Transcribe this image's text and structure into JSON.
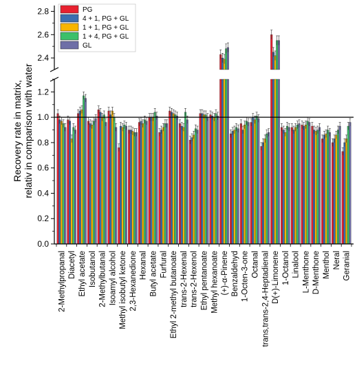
{
  "chart_data": {
    "type": "bar",
    "ylabel": [
      "Recovery rate in matrix,",
      "relativ in comparison with water"
    ],
    "reference_line": 1.0,
    "broken_y_axis": true,
    "lower_ylim": [
      0.0,
      1.3
    ],
    "upper_ylim": [
      2.3,
      2.85
    ],
    "lower_ticks": [
      "0.0",
      "0.2",
      "0.4",
      "0.6",
      "0.8",
      "1.0",
      "1.2"
    ],
    "upper_ticks": [
      "2.4",
      "2.6",
      "2.8"
    ],
    "legend_position": "top-left",
    "categories": [
      "2-Methylpropanal",
      "Diacetyl",
      "Ethyl acetate",
      "Isobutanol",
      "2-Methylbutanal",
      "Isoamyl alcohol",
      "Methyl isobutyl ketone",
      "2,3-Hexanedione",
      "Hexanal",
      "Butyl acetate",
      "Furfural",
      "Ethyl 2-methyl butanoate",
      "trans-2-Hexenal",
      "trans-2-Hexenol",
      "Ethyl pentanoate",
      "Methyl hexanoate",
      "(+)-α-Pinene",
      "Benzaldehyd",
      "1-Octen-3-one",
      "Octanal",
      "trans,trans-2,4-Heptadienal",
      "D(+)-Limonene",
      "1-Octanol",
      "Linalool",
      "L-Menthone",
      "D-Menthone",
      "Menthol",
      "Neral",
      "Geranial"
    ],
    "series": [
      {
        "name": "PG",
        "color": "#e8212f",
        "values": [
          1.03,
          0.98,
          1.03,
          0.97,
          1.06,
          1.05,
          0.76,
          0.9,
          0.96,
          1.0,
          0.88,
          1.05,
          0.95,
          0.82,
          1.03,
          1.02,
          2.43,
          0.87,
          0.95,
          0.96,
          0.77,
          2.6,
          0.92,
          0.92,
          0.94,
          0.93,
          0.83,
          0.8,
          0.73
        ]
      },
      {
        "name": "4 + 1, PG + GL",
        "color": "#3a6fb0",
        "values": [
          0.98,
          0.97,
          1.05,
          0.95,
          1.04,
          1.02,
          0.93,
          0.9,
          0.97,
          1.0,
          0.9,
          1.04,
          0.93,
          0.84,
          1.03,
          1.01,
          2.4,
          0.89,
          0.9,
          1.0,
          0.8,
          2.45,
          0.9,
          0.9,
          0.93,
          0.9,
          0.86,
          0.83,
          0.8
        ]
      },
      {
        "name": "1 + 1, PG + GL",
        "color": "#f7b500",
        "values": [
          0.97,
          0.83,
          1.06,
          0.94,
          1.0,
          1.05,
          0.92,
          0.89,
          0.95,
          1.0,
          0.92,
          1.03,
          0.92,
          0.86,
          1.02,
          1.0,
          2.39,
          0.9,
          0.94,
          0.98,
          0.83,
          2.42,
          0.88,
          0.92,
          0.94,
          0.89,
          0.87,
          0.86,
          0.83
        ]
      },
      {
        "name": "1 + 4, PG + GL",
        "color": "#3cc06a",
        "values": [
          0.95,
          0.92,
          1.17,
          0.97,
          1.02,
          1.0,
          0.94,
          0.88,
          0.98,
          1.04,
          0.95,
          1.02,
          1.04,
          0.91,
          1.02,
          1.03,
          2.48,
          0.92,
          0.97,
          1.01,
          0.87,
          2.55,
          0.93,
          0.94,
          0.97,
          0.9,
          0.9,
          0.9,
          0.93
        ]
      },
      {
        "name": "GL",
        "color": "#6f6fa7",
        "values": [
          0.92,
          0.9,
          1.15,
          0.99,
          0.96,
          0.92,
          0.93,
          0.88,
          0.97,
          1.01,
          0.95,
          1.01,
          0.98,
          0.9,
          1.0,
          1.01,
          2.49,
          0.91,
          0.96,
          0.99,
          0.88,
          2.55,
          0.92,
          0.95,
          0.96,
          0.92,
          0.88,
          0.93,
          0.96
        ]
      }
    ]
  }
}
